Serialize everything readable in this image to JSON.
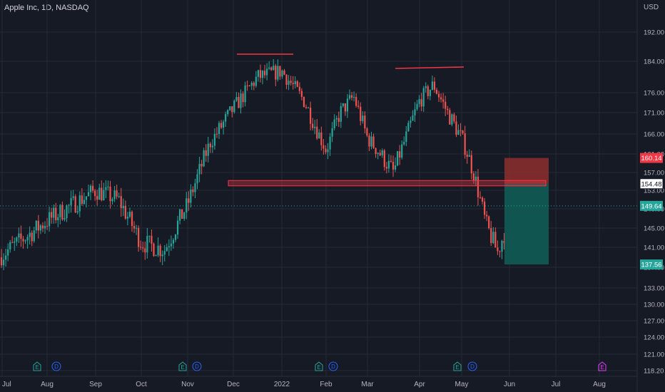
{
  "header": {
    "symbol_title": "Apple Inc, 1D, NASDAQ",
    "currency": "USD"
  },
  "chart_data": {
    "type": "candlestick",
    "title": "Apple Inc, 1D, NASDAQ",
    "currency": "USD",
    "y_ticks": [
      118.2,
      121.0,
      124.0,
      127.0,
      130.0,
      133.0,
      137.0,
      141.0,
      145.0,
      149.0,
      153.0,
      157.0,
      161.0,
      166.0,
      171.0,
      176.0,
      184.0,
      192.0
    ],
    "y_tick_labels": [
      "118.20",
      "121.00",
      "124.00",
      "127.00",
      "130.00",
      "133.00",
      "137.00",
      "141.00",
      "145.00",
      "149.00",
      "153.00",
      "157.00",
      "161.00",
      "166.00",
      "171.00",
      "176.00",
      "184.00",
      "192.00"
    ],
    "x_tick_labels": [
      "Jul",
      "Aug",
      "Sep",
      "Oct",
      "Nov",
      "Dec",
      "2022",
      "Feb",
      "Mar",
      "Apr",
      "May",
      "Jun",
      "Jul",
      "Aug"
    ],
    "price_labels": {
      "stop": "160.14",
      "level": "154.48",
      "current": "149.64",
      "target": "137.56"
    },
    "key_prices": {
      "stop": 160.14,
      "level": 154.48,
      "current": 149.64,
      "target": 137.56
    },
    "colors": {
      "up": "#26a69a",
      "down": "#ef5350",
      "background": "#161a25",
      "grid": "#252a36",
      "stop_zone": "#8e2f2f",
      "target_zone": "#0f5c54",
      "stop_label": "#f23645",
      "current_label": "#26a69a",
      "resistance": "#f23645"
    },
    "annotations": {
      "support_band": {
        "low": 154.0,
        "high": 155.2
      },
      "resistance_lines": [
        {
          "from": "Dec",
          "to": "2022",
          "price": 182.8
        },
        {
          "from": "Mar",
          "to": "May",
          "price": 179.6
        }
      ],
      "position": {
        "entry": 154.48,
        "stop": 160.14,
        "target": 137.56,
        "type": "short"
      }
    },
    "events": [
      "E",
      "D",
      "E",
      "D",
      "E",
      "D",
      "E",
      "D",
      "E"
    ],
    "grid": true,
    "trend_points": [
      [
        "Jul",
        139.5
      ],
      [
        "Aug",
        146.5
      ],
      [
        "Sep",
        153.0
      ],
      [
        "Sep",
        151.0
      ],
      [
        "Oct",
        142.0
      ],
      [
        "Oct",
        140.5
      ],
      [
        "Nov",
        150.0
      ],
      [
        "Nov",
        164.0
      ],
      [
        "Dec",
        172.0
      ],
      [
        "Dec",
        180.0
      ],
      [
        "2022",
        181.5
      ],
      [
        "2022",
        174.0
      ],
      [
        "Feb",
        162.0
      ],
      [
        "Feb",
        171.0
      ],
      [
        "Feb",
        175.0
      ],
      [
        "Mar",
        165.0
      ],
      [
        "Mar",
        157.0
      ],
      [
        "Apr",
        174.0
      ],
      [
        "Apr",
        178.0
      ],
      [
        "Apr",
        171.0
      ],
      [
        "May",
        165.0
      ],
      [
        "May",
        157.0
      ],
      [
        "May",
        146.0
      ],
      [
        "May",
        140.0
      ],
      [
        "Jun",
        147.0
      ]
    ]
  }
}
